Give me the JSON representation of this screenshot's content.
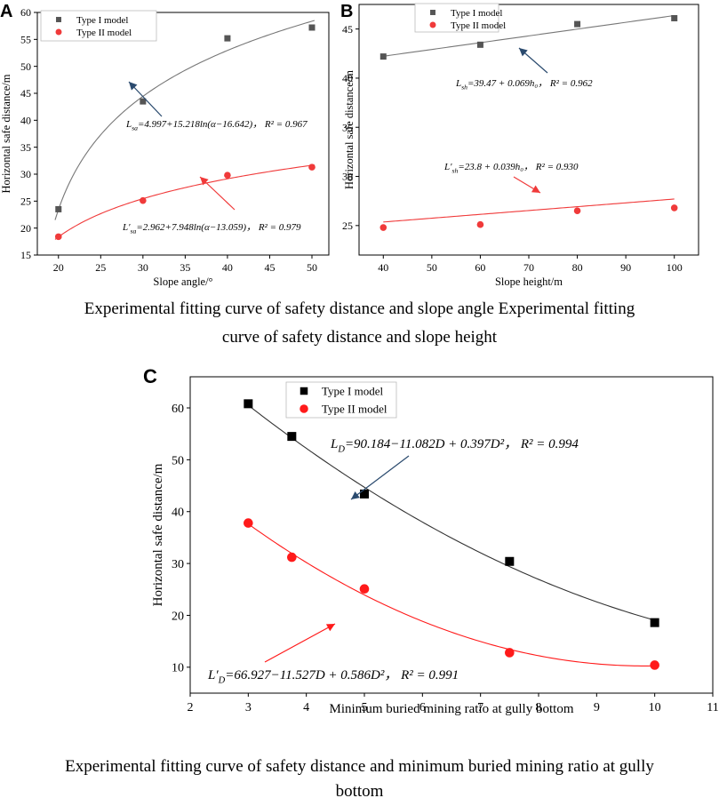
{
  "chart_data": [
    {
      "panel": "A",
      "type": "scatter",
      "xlabel": "Slope angle/°",
      "ylabel": "Horizontal safe distance/m",
      "xlim": [
        17.5,
        52
      ],
      "ylim": [
        15,
        60
      ],
      "xticks": [
        "20",
        "25",
        "30",
        "35",
        "40",
        "45",
        "50"
      ],
      "yticks": [
        "15",
        "20",
        "25",
        "30",
        "35",
        "40",
        "45",
        "50",
        "55",
        "60"
      ],
      "series": [
        {
          "name": "Type I model",
          "color": "#555555",
          "marker": "square",
          "x": [
            20,
            30,
            40,
            50
          ],
          "y": [
            23.5,
            43.5,
            55.2,
            57.2
          ],
          "fit": "4.997+15.218ln(x-16.642)"
        },
        {
          "name": "Type II model",
          "color": "#f03a3a",
          "marker": "circle",
          "x": [
            20,
            30,
            40,
            50
          ],
          "y": [
            18.4,
            25.1,
            29.8,
            31.3
          ],
          "fit": "2.962+7.948ln(x-13.059)"
        }
      ],
      "equations": [
        {
          "lhs": "L",
          "sub": "sa",
          "rhs": "=4.997+15.218ln(α−16.642)，",
          "r2": "R² = 0.967",
          "arrow_color": "#2a4a6e"
        },
        {
          "lhs": "L′",
          "sub": "sa",
          "rhs": "=2.962+7.948ln(α−13.059)，",
          "r2": "R² = 0.979",
          "arrow_color": "#f03a3a"
        }
      ],
      "caption": "Experimental fitting curve of safety distance and slope angle"
    },
    {
      "panel": "B",
      "type": "scatter",
      "xlabel": "Slope height/m",
      "ylabel": "Horizontal safe distance/m",
      "xlim": [
        35,
        105
      ],
      "ylim": [
        22,
        47.5
      ],
      "xticks": [
        "40",
        "50",
        "60",
        "70",
        "80",
        "90",
        "100"
      ],
      "yticks": [
        "25",
        "30",
        "35",
        "40",
        "45"
      ],
      "series": [
        {
          "name": "Type I model",
          "color": "#555555",
          "marker": "square",
          "x": [
            40,
            60,
            80,
            100
          ],
          "y": [
            42.2,
            43.4,
            45.5,
            46.1
          ],
          "fit": "39.47+0.069x"
        },
        {
          "name": "Type II model",
          "color": "#f03a3a",
          "marker": "circle",
          "x": [
            40,
            60,
            80,
            100
          ],
          "y": [
            24.8,
            25.1,
            26.5,
            26.8
          ],
          "fit": "23.8+0.039x"
        }
      ],
      "equations": [
        {
          "lhs": "L",
          "sub": "sh",
          "rhs": "=39.47 + 0.069h₀，",
          "r2": "R² = 0.962",
          "arrow_color": "#2a4a6e"
        },
        {
          "lhs": "L′",
          "sub": "sh",
          "rhs": "=23.8 + 0.039h₀，",
          "r2": "R² = 0.930",
          "arrow_color": "#f03a3a"
        }
      ],
      "caption": "Experimental fitting curve of safety distance and slope height"
    },
    {
      "panel": "C",
      "type": "scatter",
      "xlabel": "Minimum buried mining ratio at gully bottom",
      "ylabel": "Horizontal safe distance/m",
      "xlim": [
        2,
        11
      ],
      "ylim": [
        5,
        66
      ],
      "xticks": [
        "2",
        "3",
        "4",
        "5",
        "6",
        "7",
        "8",
        "9",
        "10",
        "11"
      ],
      "yticks": [
        "10",
        "20",
        "30",
        "40",
        "50",
        "60"
      ],
      "series": [
        {
          "name": "Type I model",
          "color": "#000000",
          "marker": "square",
          "x": [
            3,
            3.75,
            5,
            7.5,
            10
          ],
          "y": [
            60.8,
            54.5,
            43.4,
            30.4,
            18.6
          ],
          "fit": "90.184-11.082x+0.397x^2"
        },
        {
          "name": "Type II model",
          "color": "#ff1a1a",
          "marker": "circle",
          "x": [
            3,
            3.75,
            5,
            7.5,
            10
          ],
          "y": [
            37.8,
            31.2,
            25.1,
            12.8,
            10.4
          ],
          "fit": "66.927-11.527x+0.586x^2"
        }
      ],
      "equations": [
        {
          "lhs": "L",
          "sub": "D",
          "rhs": "=90.184−11.082D + 0.397D²，",
          "r2": "R² = 0.994",
          "arrow_color": "#2a4a6e"
        },
        {
          "lhs": "L′",
          "sub": "D",
          "rhs": "=66.927−11.527D + 0.586D²，",
          "r2": "R² = 0.991",
          "arrow_color": "#ff1a1a"
        }
      ],
      "caption": "Experimental fitting curve of safety distance and minimum buried mining ratio at gully bottom"
    }
  ],
  "captions": {
    "ab_line1": "Experimental fitting curve of safety distance and slope angle        Experimental fitting",
    "ab_line2": "curve of safety distance and slope height",
    "c_line1": "Experimental fitting curve of safety distance and minimum buried mining ratio at gully",
    "c_line2": "bottom"
  }
}
